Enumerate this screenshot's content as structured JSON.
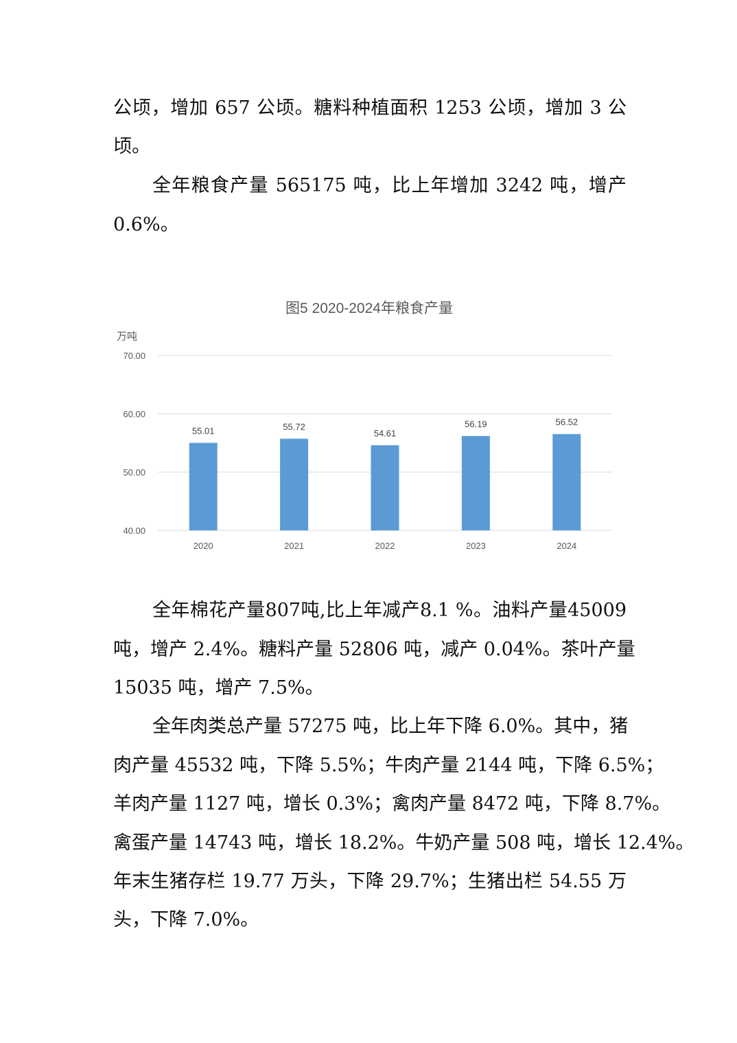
{
  "paragraph_1": {
    "lines": [
      "公顷，增加 657 公顷。糖料种植面积 1253 公顷，增加 3 公",
      "顷。"
    ]
  },
  "paragraph_2": {
    "lines": [
      "全年粮食产量 565175 吨，比上年增加 3242 吨，增产",
      "0.6%。"
    ]
  },
  "chart_data": {
    "type": "bar",
    "title": "图5   2020-2024年粮食产量",
    "ylabel": "万吨",
    "xlabel": "",
    "categories": [
      "2020",
      "2021",
      "2022",
      "2023",
      "2024"
    ],
    "values": [
      55.01,
      55.72,
      54.61,
      56.19,
      56.52
    ],
    "data_labels": [
      "55.01",
      "55.72",
      "54.61",
      "56.19",
      "56.52"
    ],
    "ylim": [
      40,
      70
    ],
    "yticks": [
      "40.00",
      "50.00",
      "60.00",
      "70.00"
    ],
    "grid": true,
    "legend": "none",
    "bar_color": "#5B9BD5"
  },
  "paragraph_3": {
    "lines": [
      "全年棉花产量807吨,比上年减产8.1 %。油料产量45009",
      "吨，增产 2.4%。糖料产量 52806 吨，减产 0.04%。茶叶产量",
      "15035 吨，增产 7.5%。"
    ]
  },
  "paragraph_4": {
    "lines": [
      "全年肉类总产量 57275 吨，比上年下降 6.0%。其中，猪",
      "肉产量 45532 吨，下降 5.5%；牛肉产量 2144 吨，下降 6.5%；",
      "羊肉产量 1127 吨，增长 0.3%；禽肉产量 8472 吨，下降 8.7%。",
      "禽蛋产量 14743 吨，增长 18.2%。牛奶产量 508 吨，增长 12.4%。",
      "年末生猪存栏 19.77 万头，下降 29.7%；生猪出栏 54.55 万",
      "头，下降 7.0%。"
    ]
  }
}
